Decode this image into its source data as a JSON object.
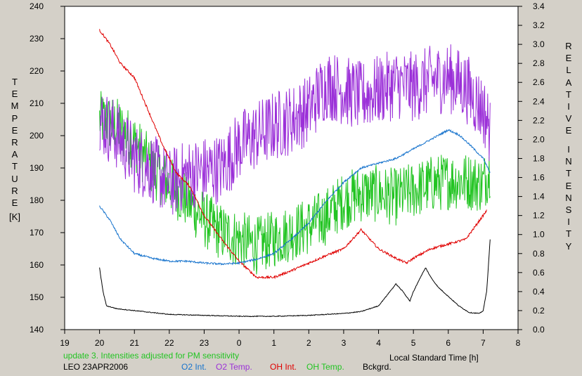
{
  "chart_data": {
    "type": "line",
    "left_axis_label_letters": [
      "T",
      "E",
      "M",
      "P",
      "E",
      "R",
      "A",
      "T",
      "U",
      "R",
      "E"
    ],
    "left_axis_unit": "[K]",
    "right_axis_label_letters_1": [
      "R",
      "E",
      "L",
      "A",
      "T",
      "I",
      "V",
      "E"
    ],
    "right_axis_label_letters_2": [
      "I",
      "N",
      "T",
      "E",
      "N",
      "S",
      "I",
      "T",
      "Y"
    ],
    "xlabel": "Local Standard Time [h]",
    "x_ticks": [
      "19",
      "20",
      "21",
      "22",
      "23",
      "0",
      "1",
      "2",
      "3",
      "4",
      "5",
      "6",
      "7",
      "8"
    ],
    "y_left_ticks": [
      "140",
      "150",
      "160",
      "170",
      "180",
      "190",
      "200",
      "210",
      "220",
      "230",
      "240"
    ],
    "y_right_ticks": [
      "0.0",
      "0.2",
      "0.4",
      "0.6",
      "0.8",
      "1.0",
      "1.2",
      "1.4",
      "1.6",
      "1.8",
      "2.0",
      "2.2",
      "2.4",
      "2.6",
      "2.8",
      "3.0",
      "3.2",
      "3.4"
    ],
    "xlim": [
      19,
      32
    ],
    "ylim_left": [
      140,
      240
    ],
    "ylim_right": [
      0,
      3.4
    ],
    "grid": false,
    "note": "update 3. Intensities adjusted for PM sensitivity",
    "station": "LEO 23APR2006",
    "colors": {
      "o2_int": "#1874cd",
      "o2_temp": "#9b30d8",
      "oh_int": "#e00000",
      "oh_temp": "#22c422",
      "bckgrd": "#000000",
      "note": "#22c422"
    },
    "series": [
      {
        "name": "O2 Int.",
        "axis": "right",
        "color_key": "o2_int",
        "noise": 0.012,
        "x": [
          20.0,
          20.3,
          20.6,
          21.0,
          21.5,
          22.0,
          22.5,
          23.0,
          23.5,
          24.0,
          24.5,
          25.0,
          25.5,
          26.0,
          26.5,
          27.0,
          27.5,
          28.0,
          28.5,
          29.0,
          29.5,
          30.0,
          30.3,
          30.6,
          31.0,
          31.2
        ],
        "y": [
          1.3,
          1.15,
          0.95,
          0.8,
          0.75,
          0.72,
          0.72,
          0.7,
          0.69,
          0.7,
          0.74,
          0.8,
          0.95,
          1.12,
          1.35,
          1.55,
          1.7,
          1.75,
          1.8,
          1.9,
          2.0,
          2.1,
          2.05,
          1.95,
          1.8,
          1.65
        ]
      },
      {
        "name": "O2 Temp.",
        "axis": "left",
        "color_key": "o2_temp",
        "noise": 11,
        "x": [
          20.0,
          20.5,
          21.0,
          21.5,
          22.0,
          22.5,
          23.0,
          23.5,
          24.0,
          24.5,
          25.0,
          25.5,
          26.0,
          26.5,
          27.0,
          27.5,
          28.0,
          28.5,
          29.0,
          29.5,
          30.0,
          30.5,
          31.0,
          31.2
        ],
        "y": [
          205,
          200,
          193,
          190,
          185,
          188,
          189,
          190,
          197,
          200,
          203,
          205,
          208,
          216,
          214,
          212,
          214,
          216,
          215,
          217,
          218,
          215,
          208,
          202
        ]
      },
      {
        "name": "OH Int.",
        "axis": "right",
        "color_key": "oh_int",
        "noise": 0.015,
        "x": [
          20.0,
          20.3,
          20.6,
          21.0,
          21.4,
          21.8,
          22.2,
          22.6,
          23.0,
          23.5,
          24.0,
          24.5,
          25.0,
          25.5,
          26.0,
          26.5,
          27.0,
          27.5,
          28.0,
          28.5,
          28.8,
          29.0,
          29.5,
          30.0,
          30.5,
          31.0,
          31.1
        ],
        "y": [
          3.15,
          3.0,
          2.8,
          2.65,
          2.3,
          1.95,
          1.65,
          1.5,
          1.2,
          0.95,
          0.72,
          0.55,
          0.55,
          0.62,
          0.7,
          0.78,
          0.85,
          1.05,
          0.85,
          0.75,
          0.7,
          0.75,
          0.85,
          0.9,
          0.95,
          1.2,
          1.25
        ]
      },
      {
        "name": "OH Temp.",
        "axis": "left",
        "color_key": "oh_temp",
        "noise": 9,
        "x": [
          20.0,
          20.5,
          21.0,
          21.5,
          22.0,
          22.5,
          23.0,
          23.5,
          24.0,
          24.5,
          25.0,
          25.5,
          26.0,
          26.5,
          27.0,
          27.5,
          28.0,
          28.5,
          29.0,
          29.5,
          30.0,
          30.5,
          31.0,
          31.2
        ],
        "y": [
          205,
          203,
          198,
          190,
          185,
          180,
          174,
          170,
          168,
          166,
          168,
          170,
          172,
          175,
          180,
          182,
          182,
          181,
          183,
          185,
          186,
          186,
          185,
          190
        ]
      },
      {
        "name": "Bckgrd.",
        "axis": "right",
        "color_key": "bckgrd",
        "noise": 0.005,
        "x": [
          20.0,
          20.1,
          20.2,
          20.5,
          21.0,
          21.5,
          22.0,
          23.0,
          24.0,
          25.0,
          26.0,
          27.0,
          27.5,
          28.0,
          28.5,
          28.7,
          28.9,
          29.0,
          29.2,
          29.35,
          29.5,
          29.7,
          30.0,
          30.3,
          30.6,
          30.9,
          31.0,
          31.1,
          31.2
        ],
        "y": [
          0.65,
          0.4,
          0.25,
          0.22,
          0.2,
          0.18,
          0.16,
          0.15,
          0.14,
          0.14,
          0.15,
          0.17,
          0.19,
          0.25,
          0.48,
          0.4,
          0.3,
          0.4,
          0.55,
          0.65,
          0.55,
          0.45,
          0.35,
          0.25,
          0.18,
          0.17,
          0.2,
          0.4,
          0.95
        ]
      }
    ]
  }
}
